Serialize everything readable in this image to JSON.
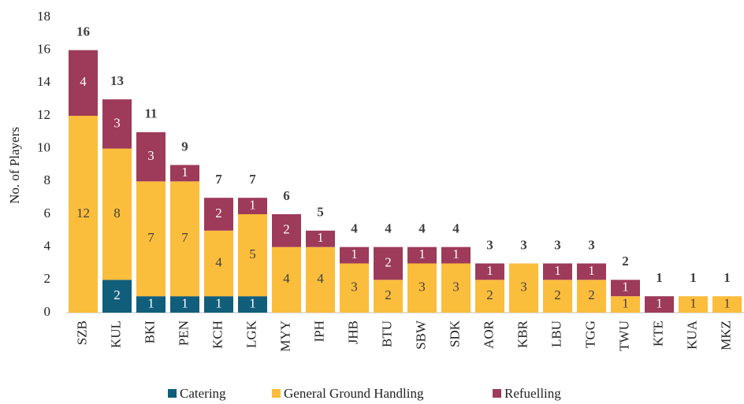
{
  "chart_data": {
    "type": "stacked_bar",
    "y_label": "No. of Players",
    "categories": [
      "SZB",
      "KUL",
      "BKI",
      "PEN",
      "KCH",
      "LGK",
      "MYY",
      "IPH",
      "JHB",
      "BTU",
      "SBW",
      "SDK",
      "AOR",
      "KBR",
      "LBU",
      "TGG",
      "TWU",
      "KTE",
      "KUA",
      "MKZ"
    ],
    "series": [
      {
        "name": "Catering",
        "color": "#115e7a",
        "values": [
          0,
          2,
          1,
          1,
          1,
          1,
          0,
          0,
          0,
          0,
          0,
          0,
          0,
          0,
          0,
          0,
          0,
          0,
          0,
          0
        ]
      },
      {
        "name": "General Ground Handling",
        "color": "#fbbd3c",
        "values": [
          12,
          8,
          7,
          7,
          4,
          5,
          4,
          4,
          3,
          2,
          3,
          3,
          2,
          3,
          2,
          2,
          1,
          0,
          1,
          1
        ]
      },
      {
        "name": "Refuelling",
        "color": "#9e3a5a",
        "values": [
          4,
          3,
          3,
          1,
          2,
          1,
          2,
          1,
          1,
          2,
          1,
          1,
          1,
          0,
          1,
          1,
          1,
          1,
          0,
          0
        ]
      }
    ],
    "totals": [
      16,
      13,
      11,
      9,
      7,
      7,
      6,
      5,
      4,
      4,
      4,
      4,
      3,
      3,
      3,
      3,
      2,
      1,
      1,
      1
    ],
    "ylim": [
      0,
      18
    ],
    "yticks": [
      0,
      2,
      4,
      6,
      8,
      10,
      12,
      14,
      16,
      18
    ],
    "legend": "bottom"
  }
}
